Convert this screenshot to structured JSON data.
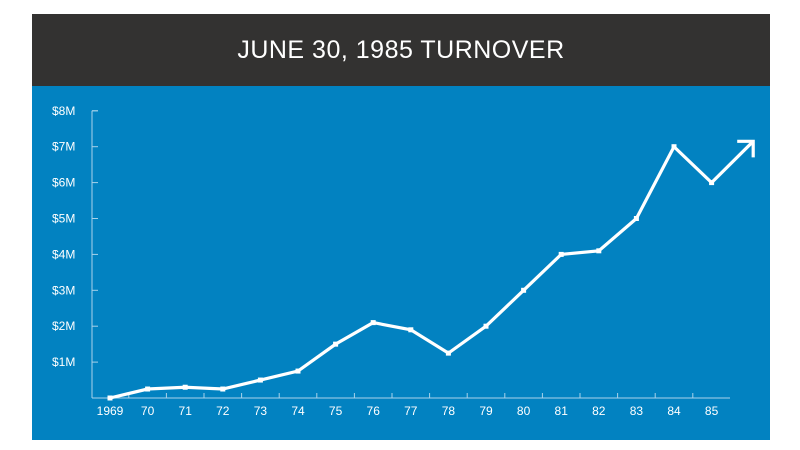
{
  "colors": {
    "title_background": "#333231",
    "chart_background": "#0282c1",
    "line": "#ffffff",
    "axis": "#a9d3ea"
  },
  "chart_data": {
    "type": "line",
    "title": "JUNE 30, 1985 TURNOVER",
    "xlabel": "",
    "ylabel": "",
    "categories": [
      "1969",
      "70",
      "71",
      "72",
      "73",
      "74",
      "75",
      "76",
      "77",
      "78",
      "79",
      "80",
      "81",
      "82",
      "83",
      "84",
      "85"
    ],
    "series": [
      {
        "values": [
          0,
          0.25,
          0.3,
          0.25,
          0.5,
          0.75,
          1.5,
          2.1,
          1.9,
          1.25,
          2.0,
          3.0,
          4.0,
          4.1,
          5.0,
          7.0,
          6.0
        ]
      }
    ],
    "trend_arrow_end": {
      "x": "86",
      "y": 7.15
    },
    "ylim": [
      0,
      8
    ],
    "yticks": [
      1,
      2,
      3,
      4,
      5,
      6,
      7,
      8
    ],
    "ytick_labels": [
      "$1M",
      "$2M",
      "$3M",
      "$4M",
      "$5M",
      "$6M",
      "$7M",
      "$8M"
    ],
    "grid": false,
    "legend": "none"
  }
}
